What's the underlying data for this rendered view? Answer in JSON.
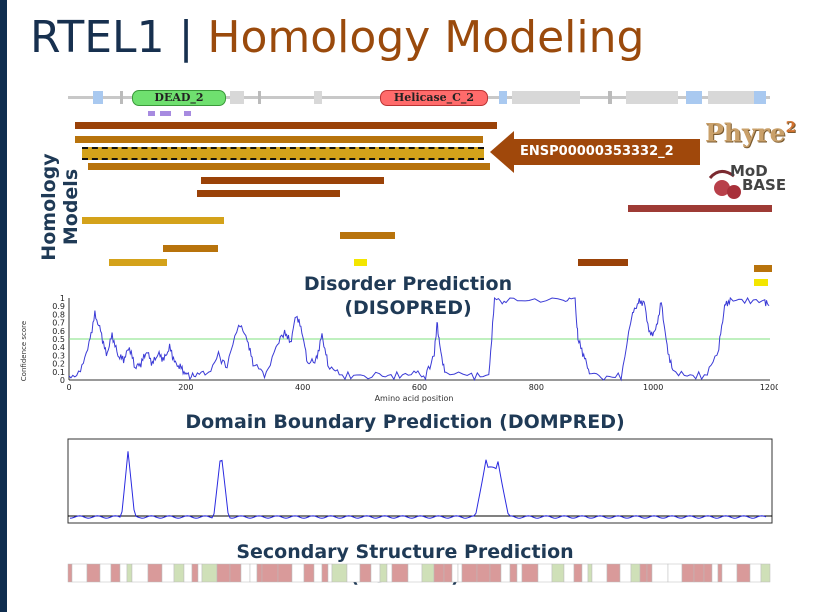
{
  "title": {
    "main": "RTEL1",
    "separator": "|",
    "subtitle": "Homology Modeling"
  },
  "domains": {
    "dead": "DEAD_2",
    "helicase": "Helicase_C_2"
  },
  "homology": {
    "label_line1": "Homology",
    "label_line2": "Models",
    "arrow_label": "ENSP00000353332_2",
    "phyre_text": "Phyre",
    "phyre_sup": "2",
    "modbase_line1": "MoD",
    "modbase_line2": "BASE"
  },
  "disopred": {
    "heading_line1": "Disorder Prediction",
    "heading_line2": "(DISOPRED)",
    "ylabel": "Confidence score",
    "xlabel": "Amino acid position",
    "yticks": [
      "0",
      "0.1",
      "0.2",
      "0.3",
      "0.4",
      "0.5",
      "0.6",
      "0.7",
      "0.8",
      "0.9",
      "1"
    ],
    "xticks": [
      "0",
      "200",
      "400",
      "600",
      "800",
      "1000",
      "1200"
    ],
    "threshold": 0.5,
    "line_color": "#3b3bd6",
    "threshold_color": "#7fe07f"
  },
  "dompred": {
    "heading": "Domain Boundary Prediction (DOMPRED)"
  },
  "psipred": {
    "heading_line1": "Secondary Structure Prediction",
    "heading_line2": "(PSIPRED)"
  },
  "colors": {
    "title_dark": "#17304f",
    "title_accent": "#9a4a0c",
    "model_dark": "#9a4208",
    "model_mid": "#b8730c",
    "model_gold": "#d4a21a",
    "model_yellow": "#f3e600",
    "model_red": "#9e3b35"
  }
}
